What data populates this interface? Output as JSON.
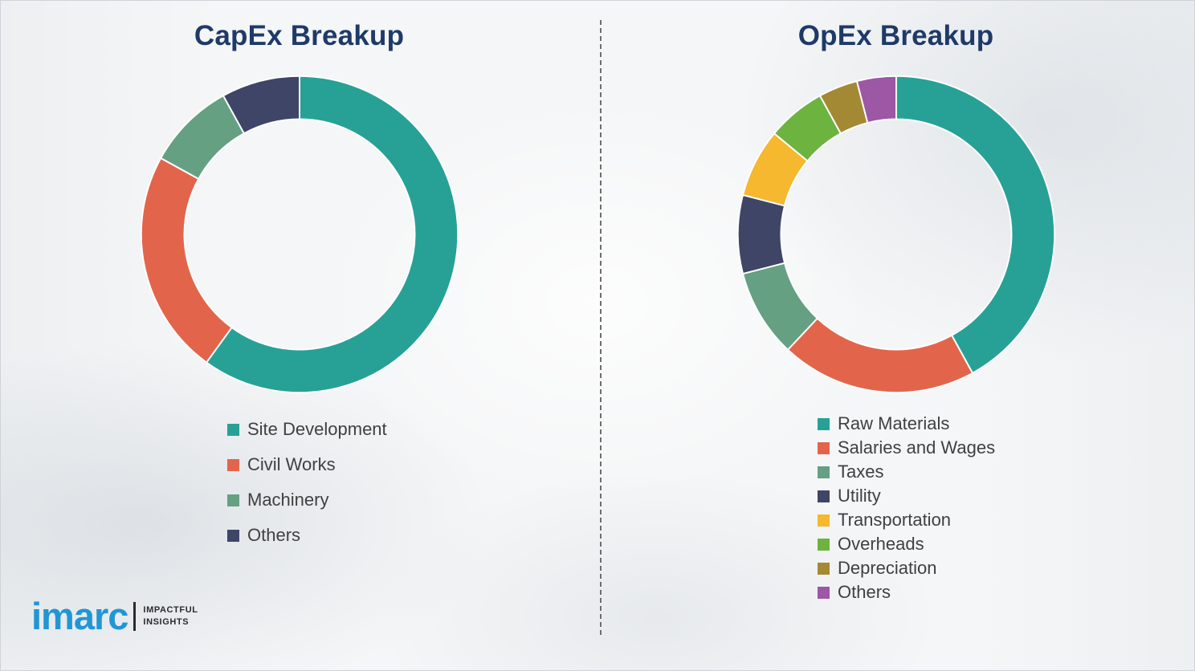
{
  "ui_colors": {
    "title": "#1E3A68",
    "legend_text": "#404040",
    "background": "#F5F6F7",
    "divider": "#6E6E6E",
    "logo_blue": "#2196D5",
    "logo_dark": "#2B2B2B",
    "border": "#CFD3D7"
  },
  "chart_data": [
    {
      "type": "pie",
      "subtype": "donut",
      "title": "CapEx Breakup",
      "categories": [
        "Site Development",
        "Civil Works",
        "Machinery",
        "Others"
      ],
      "values": [
        60,
        23,
        9,
        8
      ],
      "colors": [
        "#27A196",
        "#E2654B",
        "#65A083",
        "#3F4566"
      ],
      "start_angle_deg": 0,
      "direction": "clockwise",
      "legend_position": "bottom-left",
      "data_labels": false
    },
    {
      "type": "pie",
      "subtype": "donut",
      "title": "OpEx Breakup",
      "categories": [
        "Raw Materials",
        "Salaries and Wages",
        "Taxes",
        "Utility",
        "Transportation",
        "Overheads",
        "Depreciation",
        "Others"
      ],
      "values": [
        42,
        20,
        9,
        8,
        7,
        6,
        4,
        4
      ],
      "colors": [
        "#27A196",
        "#E2654B",
        "#65A083",
        "#3F4566",
        "#F5B82E",
        "#6DB33F",
        "#A38934",
        "#9C57A5"
      ],
      "start_angle_deg": 0,
      "direction": "clockwise",
      "legend_position": "bottom-left",
      "data_labels": false
    }
  ],
  "branding": {
    "logo_text": "imarc",
    "tagline_line1": "IMPACTFUL",
    "tagline_line2": "INSIGHTS"
  }
}
